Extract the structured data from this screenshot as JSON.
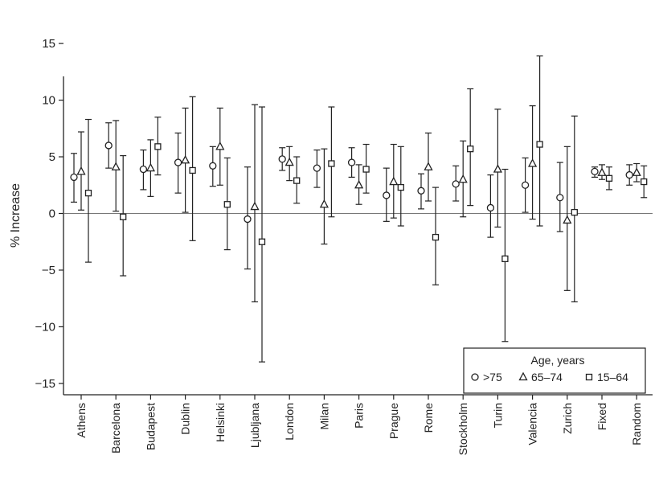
{
  "chart_data": {
    "type": "scatter",
    "ylabel": "% Increase",
    "ylim": [
      -16,
      16
    ],
    "yticks": [
      -15,
      -10,
      -5,
      0,
      5,
      10,
      15
    ],
    "ytick_labels": [
      "−15",
      "−10",
      "−5",
      "0",
      "5",
      "10",
      "15"
    ],
    "reference_line": 0,
    "categories": [
      "Athens",
      "Barcelona",
      "Budapest",
      "Dublin",
      "Helsinki",
      "Ljubljana",
      "London",
      "Milan",
      "Paris",
      "Prague",
      "Rome",
      "Stockholm",
      "Turin",
      "Valencia",
      "Zurich",
      "Fixed",
      "Random"
    ],
    "legend": {
      "title": "Age, years",
      "placement": "bottom-right",
      "entries": [
        {
          "marker": "circle",
          "label": ">75"
        },
        {
          "marker": "triangle",
          "label": "65–74"
        },
        {
          "marker": "square",
          "label": "15–64"
        }
      ]
    },
    "series": [
      {
        "name": ">75",
        "marker": "circle",
        "values": [
          3.2,
          6.0,
          3.9,
          4.5,
          4.2,
          -0.5,
          4.8,
          4.0,
          4.5,
          1.6,
          2.0,
          2.6,
          0.5,
          2.5,
          1.4,
          3.7,
          3.4
        ],
        "lower": [
          1.0,
          4.0,
          2.1,
          1.8,
          2.4,
          -4.9,
          3.8,
          2.3,
          3.2,
          -0.7,
          0.4,
          1.1,
          -2.1,
          0.1,
          -1.6,
          3.2,
          2.5
        ],
        "upper": [
          5.3,
          8.0,
          5.6,
          7.1,
          5.9,
          4.1,
          5.8,
          5.6,
          5.8,
          4.0,
          3.5,
          4.2,
          3.4,
          4.9,
          4.5,
          4.1,
          4.3
        ]
      },
      {
        "name": "65–74",
        "marker": "triangle",
        "values": [
          3.7,
          4.1,
          4.0,
          4.7,
          5.9,
          0.6,
          4.5,
          0.8,
          2.5,
          2.8,
          4.1,
          3.0,
          3.9,
          4.4,
          -0.6,
          3.6,
          3.6
        ],
        "lower": [
          0.3,
          0.2,
          1.5,
          0.1,
          2.5,
          -7.8,
          2.9,
          -2.7,
          0.8,
          -0.4,
          1.1,
          -0.3,
          -1.2,
          -0.5,
          -6.8,
          3.0,
          2.8
        ],
        "upper": [
          7.2,
          8.2,
          6.5,
          9.3,
          9.3,
          9.6,
          5.9,
          5.7,
          4.3,
          6.1,
          7.1,
          6.4,
          9.2,
          9.5,
          5.9,
          4.3,
          4.4
        ]
      },
      {
        "name": "15–64",
        "marker": "square",
        "values": [
          1.8,
          -0.3,
          5.9,
          3.8,
          0.8,
          -2.5,
          2.9,
          4.4,
          3.9,
          2.3,
          -2.1,
          5.7,
          -4.0,
          6.1,
          0.1,
          3.1,
          2.8
        ],
        "lower": [
          -4.3,
          -5.5,
          3.4,
          -2.4,
          -3.2,
          -13.1,
          0.9,
          -0.3,
          1.8,
          -1.1,
          -6.3,
          0.7,
          -11.3,
          -1.1,
          -7.8,
          2.1,
          1.4
        ],
        "upper": [
          8.3,
          5.1,
          8.5,
          10.3,
          4.9,
          9.4,
          5.0,
          9.4,
          6.1,
          5.9,
          2.3,
          11.0,
          3.9,
          13.9,
          8.6,
          4.1,
          4.2
        ]
      }
    ]
  }
}
